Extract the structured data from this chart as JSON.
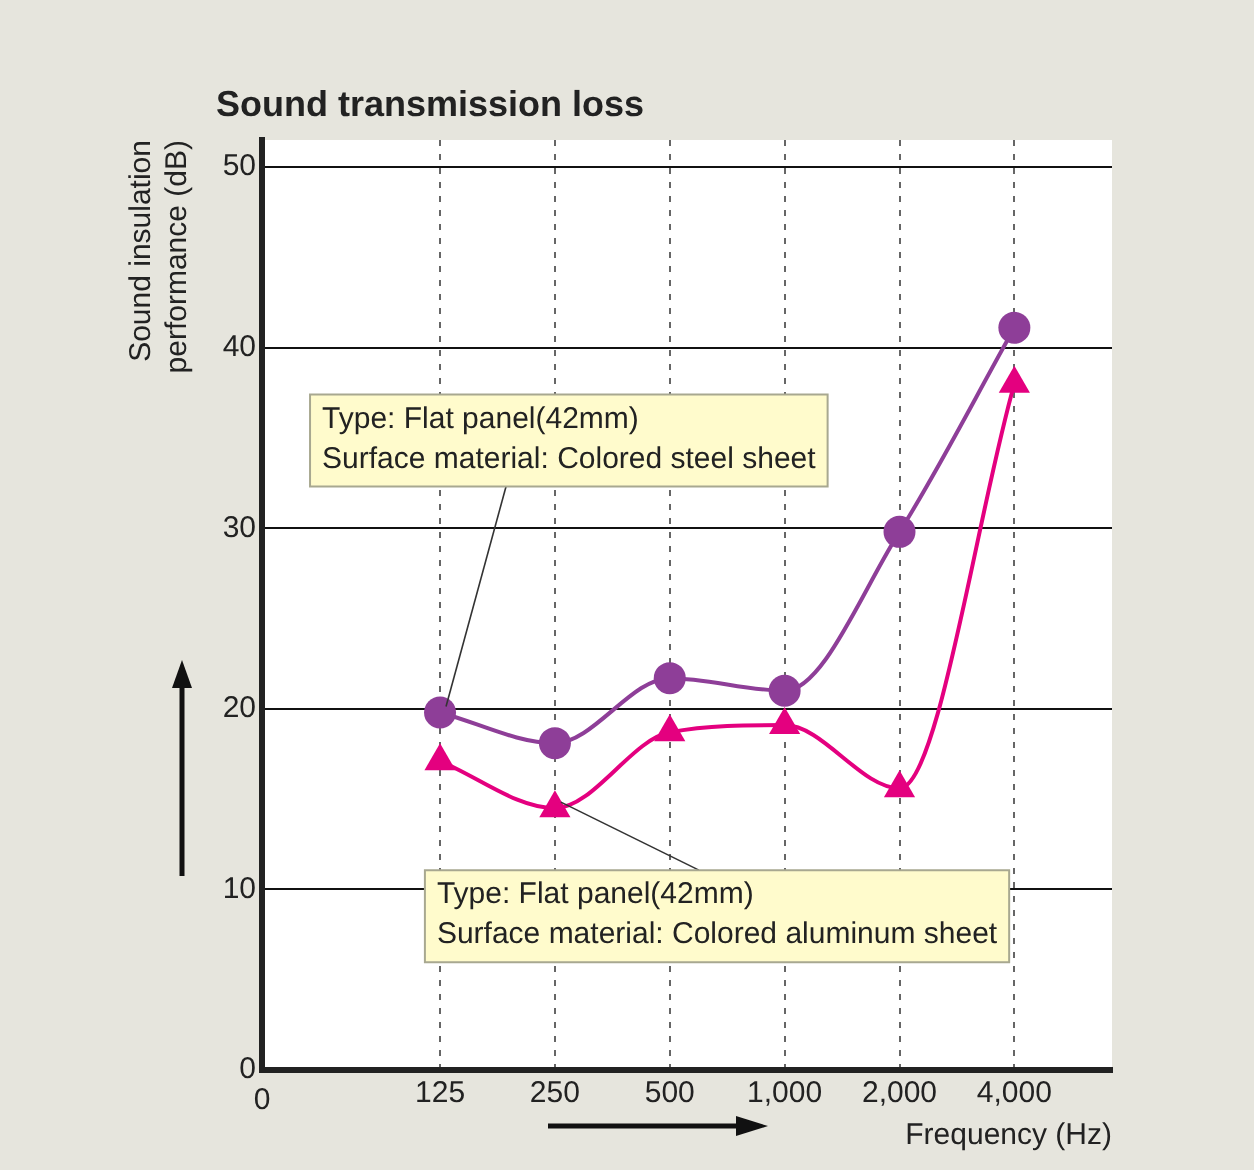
{
  "chart_data": {
    "type": "line",
    "title": "Sound transmission loss",
    "xlabel": "Frequency (Hz)",
    "ylabel": "Sound insulation\nperformance (dB)",
    "categories": [
      "125",
      "250",
      "500",
      "1,000",
      "2,000",
      "4,000"
    ],
    "series": [
      {
        "color": "#8e3e98",
        "marker": "circle",
        "values": [
          19.8,
          18.1,
          21.7,
          21.0,
          29.8,
          41.1
        ]
      },
      {
        "color": "#e4007f",
        "marker": "triangle",
        "values": [
          17.1,
          14.5,
          18.7,
          19.1,
          15.6,
          38.0
        ]
      }
    ],
    "ylim": [
      0,
      51.5
    ],
    "yticks": [
      0,
      10,
      20,
      30,
      40,
      50
    ],
    "grid": true,
    "legend": false,
    "annotations": [
      "0",
      {
        "text": "Type: Flat panel(42mm)\nSurface material: Colored steel sheet",
        "x": "125",
        "y": 19.8
      },
      {
        "text": "Type: Flat panel(42mm)\nSurface material: Colored aluminum sheet",
        "x": "250",
        "y": 14.5
      }
    ]
  }
}
